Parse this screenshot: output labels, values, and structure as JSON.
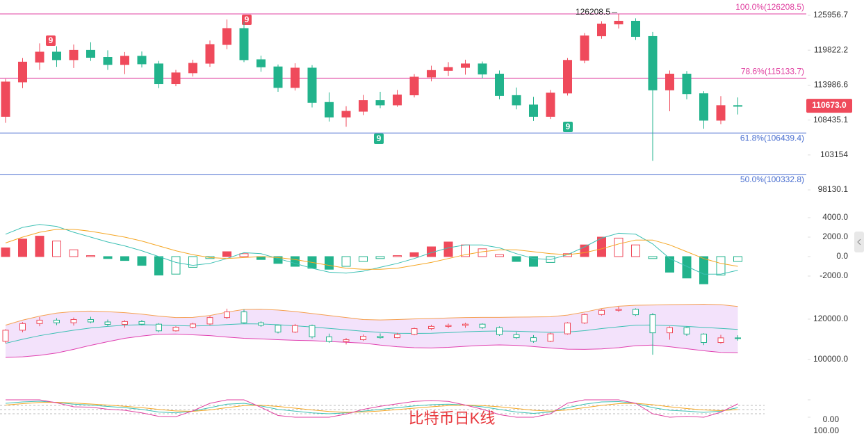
{
  "caption": "比特币日K线",
  "chart_data": [
    {
      "type": "candlestick",
      "log_scale": true,
      "ylim": [
        96490,
        128740
      ],
      "yticks": [
        125956.7,
        119822.2,
        113986.6,
        108435.1,
        103154.0,
        98130.1
      ],
      "up_color": "#ef4a5b",
      "down_color": "#22b38c",
      "candles": [
        [
          109000,
          115000,
          108000,
          114500
        ],
        [
          114500,
          118500,
          113500,
          117800
        ],
        [
          117800,
          121000,
          116500,
          119500
        ],
        [
          119500,
          120500,
          117000,
          118200
        ],
        [
          118200,
          120800,
          116800,
          119800
        ],
        [
          119800,
          121200,
          118000,
          118600
        ],
        [
          118600,
          119800,
          116500,
          117400
        ],
        [
          117400,
          119500,
          115800,
          118800
        ],
        [
          118800,
          119600,
          116900,
          117500
        ],
        [
          117500,
          118000,
          113500,
          114200
        ],
        [
          114200,
          116500,
          113800,
          116000
        ],
        [
          116000,
          118200,
          115400,
          117600
        ],
        [
          117600,
          121500,
          117000,
          120800
        ],
        [
          120800,
          125200,
          120000,
          123600
        ],
        [
          123600,
          124800,
          117800,
          118200
        ],
        [
          118200,
          118900,
          116200,
          117000
        ],
        [
          117000,
          117400,
          112900,
          113600
        ],
        [
          113600,
          117600,
          113100,
          116800
        ],
        [
          116800,
          117300,
          110400,
          111200
        ],
        [
          111200,
          112800,
          108200,
          108900
        ],
        [
          108900,
          110600,
          107400,
          109800
        ],
        [
          109800,
          112400,
          109200,
          111500
        ],
        [
          111500,
          112900,
          110300,
          110800
        ],
        [
          110800,
          113200,
          110500,
          112400
        ],
        [
          112400,
          115800,
          112000,
          115300
        ],
        [
          115300,
          117200,
          114600,
          116400
        ],
        [
          116400,
          117800,
          115500,
          116900
        ],
        [
          116900,
          118200,
          115700,
          117500
        ],
        [
          117500,
          117900,
          115100,
          115800
        ],
        [
          115800,
          116400,
          111700,
          112300
        ],
        [
          112300,
          113600,
          110100,
          110800
        ],
        [
          110800,
          112100,
          108300,
          109000
        ],
        [
          109000,
          113200,
          108600,
          112700
        ],
        [
          112700,
          118500,
          112300,
          118100
        ],
        [
          118100,
          122800,
          117600,
          122300
        ],
        [
          122300,
          124900,
          121800,
          124400
        ],
        [
          124400,
          126208.5,
          123600,
          124900
        ],
        [
          124900,
          125400,
          121600,
          122200
        ],
        [
          122200,
          123000,
          102300,
          113200
        ],
        [
          113200,
          116400,
          109800,
          115800
        ],
        [
          115800,
          116300,
          111700,
          112600
        ],
        [
          112600,
          113000,
          107100,
          108400
        ],
        [
          108400,
          112200,
          107800,
          110700
        ],
        [
          110700,
          112000,
          109300,
          110673
        ]
      ],
      "fib_levels": [
        {
          "label": "100.0%(126208.5)",
          "value": 126208.5,
          "color": "#e040a0"
        },
        {
          "label": "78.6%(115133.7)",
          "value": 115133.7,
          "color": "#e040a0"
        },
        {
          "label": "61.8%(106439.4)",
          "value": 106439.4,
          "color": "#4a6fd0"
        },
        {
          "label": "50.0%(100332.8)",
          "value": 100332.8,
          "color": "#4a6fd0"
        }
      ],
      "high_label": {
        "value": 126208.5,
        "label": "126208.5"
      },
      "last_price": {
        "value": 110673,
        "label": "110673.0"
      },
      "markers": [
        "9",
        "9",
        "9",
        "9"
      ]
    },
    {
      "type": "macd",
      "ylim": [
        -3000,
        4500
      ],
      "yticks": [
        {
          "value": 4000,
          "label": "4000.0"
        },
        {
          "value": 2000,
          "label": "2000.0"
        },
        {
          "value": 0,
          "label": "0.0"
        },
        {
          "value": -2000,
          "label": "-2000.0"
        }
      ],
      "histogram": {
        "up_color": "#ef4a5b",
        "down_color": "#22b38c",
        "values": [
          900,
          1800,
          2100,
          1600,
          700,
          100,
          -200,
          -400,
          -900,
          -1900,
          -1800,
          -1100,
          -200,
          500,
          300,
          -300,
          -700,
          -1000,
          -1200,
          -1300,
          -1000,
          -500,
          -200,
          100,
          400,
          1000,
          1500,
          1200,
          800,
          200,
          -500,
          -1000,
          -600,
          300,
          1200,
          2000,
          1900,
          1200,
          -200,
          -1600,
          -2200,
          -2800,
          -1900,
          -500
        ]
      },
      "series": [
        {
          "color": "#3cc0b4",
          "values": [
            2300,
            3000,
            3300,
            3100,
            2500,
            2000,
            1500,
            1100,
            600,
            0,
            -600,
            -900,
            -700,
            -200,
            400,
            300,
            -200,
            -700,
            -1200,
            -1600,
            -1700,
            -1500,
            -1100,
            -700,
            -200,
            400,
            900,
            1200,
            1200,
            900,
            300,
            -200,
            -300,
            200,
            1000,
            1900,
            2400,
            2300,
            1300,
            -200,
            -1000,
            -1800,
            -1800,
            -1400
          ]
        },
        {
          "color": "#f5a623",
          "values": [
            1400,
            2000,
            2500,
            2800,
            2800,
            2600,
            2300,
            2000,
            1600,
            1100,
            600,
            200,
            -100,
            -200,
            -100,
            0,
            -100,
            -300,
            -600,
            -900,
            -1200,
            -1300,
            -1300,
            -1200,
            -900,
            -600,
            -200,
            200,
            500,
            700,
            700,
            500,
            300,
            200,
            400,
            800,
            1300,
            1700,
            1700,
            1200,
            500,
            -200,
            -700,
            -1000
          ]
        }
      ]
    },
    {
      "type": "bollinger",
      "ylim": [
        92000,
        130000
      ],
      "yticks": [
        {
          "value": 120000,
          "label": "120000.0"
        },
        {
          "value": 100000,
          "label": "100000.0"
        }
      ],
      "fill": "#f3e2fb",
      "series": [
        {
          "color": "#f5a050",
          "values": [
            117000,
            119500,
            121500,
            123000,
            123800,
            124000,
            123700,
            123200,
            122500,
            121500,
            120800,
            120900,
            121800,
            123500,
            124800,
            124900,
            124500,
            123800,
            122800,
            121800,
            120800,
            119800,
            119600,
            119800,
            120100,
            120300,
            120600,
            120800,
            120900,
            120900,
            121000,
            121100,
            121200,
            122000,
            123500,
            125300,
            126400,
            126900,
            127000,
            127200,
            127300,
            127400,
            127200,
            126300
          ]
        },
        {
          "color": "#3cc0b4",
          "values": [
            108000,
            110000,
            111800,
            113200,
            114500,
            115600,
            116400,
            117000,
            117200,
            117100,
            116800,
            116600,
            116800,
            117300,
            117700,
            117600,
            117200,
            116700,
            116100,
            115400,
            114700,
            114000,
            113400,
            113000,
            112900,
            113000,
            113300,
            113700,
            114000,
            114100,
            114000,
            113700,
            113400,
            113600,
            114300,
            115300,
            116200,
            117000,
            117100,
            116800,
            116400,
            115900,
            115400,
            114900
          ]
        },
        {
          "color": "#e040b0",
          "values": [
            101000,
            101300,
            102000,
            103200,
            105000,
            107000,
            108800,
            110500,
            111600,
            112500,
            112600,
            112200,
            111800,
            111100,
            110500,
            110200,
            109800,
            109500,
            109300,
            108900,
            108500,
            108100,
            107100,
            106300,
            105800,
            105700,
            106000,
            106500,
            107000,
            107200,
            107000,
            106400,
            105700,
            105100,
            105000,
            105200,
            105800,
            106800,
            107100,
            106300,
            105300,
            104300,
            103500,
            103300
          ]
        }
      ]
    },
    {
      "type": "kdj",
      "ylim": [
        0,
        100
      ],
      "yticks": [
        {
          "value": 0,
          "label": "0.00"
        },
        {
          "value": 100,
          "label": "100.00"
        }
      ],
      "series": [
        {
          "color": "#3cc0b4",
          "values": [
            80,
            88,
            92,
            85,
            75,
            70,
            62,
            55,
            45,
            30,
            25,
            35,
            55,
            75,
            80,
            65,
            45,
            35,
            25,
            20,
            25,
            35,
            45,
            55,
            65,
            72,
            75,
            70,
            60,
            45,
            30,
            22,
            30,
            55,
            75,
            88,
            90,
            80,
            55,
            40,
            35,
            28,
            35,
            55
          ]
        },
        {
          "color": "#f5a623",
          "values": [
            70,
            78,
            85,
            86,
            82,
            76,
            70,
            63,
            55,
            45,
            36,
            34,
            42,
            55,
            67,
            69,
            62,
            52,
            42,
            33,
            28,
            30,
            36,
            44,
            52,
            60,
            67,
            70,
            67,
            60,
            50,
            40,
            35,
            42,
            55,
            68,
            78,
            80,
            72,
            60,
            50,
            42,
            38,
            44
          ]
        },
        {
          "color": "#e040a0",
          "values": [
            100,
            100,
            100,
            83,
            60,
            58,
            46,
            40,
            25,
            5,
            3,
            37,
            80,
            100,
            100,
            57,
            10,
            0,
            0,
            0,
            18,
            45,
            63,
            77,
            91,
            96,
            91,
            70,
            46,
            15,
            0,
            0,
            20,
            81,
            100,
            100,
            100,
            80,
            20,
            0,
            5,
            0,
            29,
            77
          ]
        }
      ]
    }
  ]
}
